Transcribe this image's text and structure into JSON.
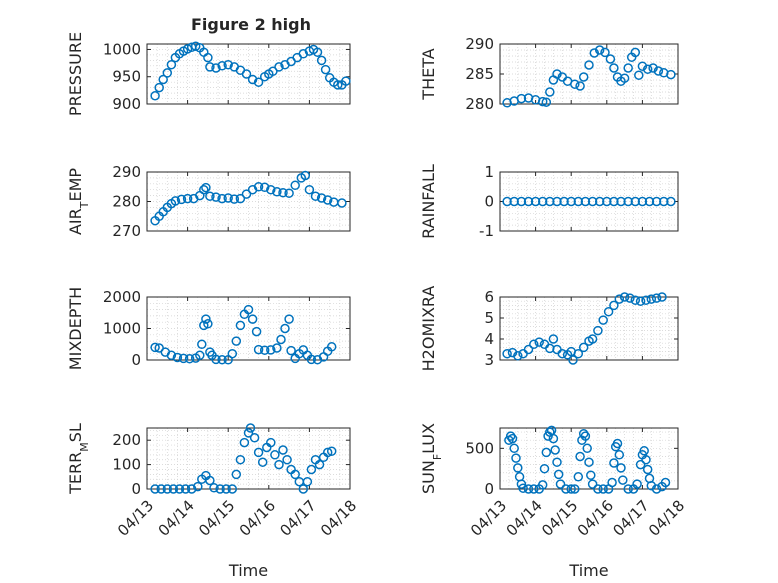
{
  "figure": {
    "title": "Figure 2 high",
    "marker_color": "#0072BD",
    "axis_color": "#262626",
    "grid_color": "#d0d0d0"
  },
  "chart_data": [
    {
      "type": "scatter",
      "title": "Figure 2 high",
      "ylabel": "PRESSURE",
      "xlabel": "",
      "xlim": [
        "04/13",
        "04/18"
      ],
      "ylim": [
        900,
        1010
      ],
      "yticks": [
        900,
        950,
        1000
      ],
      "grid": true,
      "points": [
        [
          4.2,
          915
        ],
        [
          4.3,
          930
        ],
        [
          4.4,
          945
        ],
        [
          4.5,
          957
        ],
        [
          4.6,
          972
        ],
        [
          4.7,
          985
        ],
        [
          4.8,
          992
        ],
        [
          4.9,
          997
        ],
        [
          5.0,
          1001
        ],
        [
          5.1,
          1004
        ],
        [
          5.2,
          1006
        ],
        [
          5.3,
          1003
        ],
        [
          5.4,
          995
        ],
        [
          5.5,
          985
        ],
        [
          5.55,
          968
        ],
        [
          5.7,
          966
        ],
        [
          5.85,
          970
        ],
        [
          6.0,
          972
        ],
        [
          6.15,
          968
        ],
        [
          6.3,
          962
        ],
        [
          6.45,
          955
        ],
        [
          6.6,
          945
        ],
        [
          6.75,
          940
        ],
        [
          6.9,
          950
        ],
        [
          7.0,
          955
        ],
        [
          7.1,
          960
        ],
        [
          7.25,
          968
        ],
        [
          7.4,
          972
        ],
        [
          7.55,
          978
        ],
        [
          7.7,
          985
        ],
        [
          7.85,
          992
        ],
        [
          8.0,
          997
        ],
        [
          8.1,
          1000
        ],
        [
          8.2,
          995
        ],
        [
          8.3,
          980
        ],
        [
          8.4,
          963
        ],
        [
          8.5,
          948
        ],
        [
          8.6,
          940
        ],
        [
          8.7,
          935
        ],
        [
          8.8,
          935
        ],
        [
          8.9,
          942
        ]
      ]
    },
    {
      "type": "scatter",
      "ylabel": "THETA",
      "xlabel": "",
      "xlim": [
        "04/13",
        "04/18"
      ],
      "ylim": [
        280,
        290
      ],
      "yticks": [
        280,
        285,
        290
      ],
      "grid": true,
      "points": [
        [
          4.2,
          280.2
        ],
        [
          4.4,
          280.5
        ],
        [
          4.6,
          280.9
        ],
        [
          4.8,
          281.0
        ],
        [
          5.0,
          280.7
        ],
        [
          5.2,
          280.4
        ],
        [
          5.3,
          280.3
        ],
        [
          5.4,
          282.0
        ],
        [
          5.5,
          284.0
        ],
        [
          5.6,
          285.0
        ],
        [
          5.75,
          284.5
        ],
        [
          5.9,
          283.8
        ],
        [
          6.1,
          283.3
        ],
        [
          6.25,
          283.0
        ],
        [
          6.35,
          284.5
        ],
        [
          6.5,
          286.5
        ],
        [
          6.65,
          288.5
        ],
        [
          6.8,
          289.0
        ],
        [
          6.95,
          288.6
        ],
        [
          7.1,
          287.5
        ],
        [
          7.2,
          286.0
        ],
        [
          7.3,
          284.5
        ],
        [
          7.4,
          283.8
        ],
        [
          7.5,
          284.3
        ],
        [
          7.6,
          286.0
        ],
        [
          7.7,
          287.8
        ],
        [
          7.8,
          288.6
        ],
        [
          7.9,
          284.8
        ],
        [
          8.0,
          286.3
        ],
        [
          8.15,
          285.8
        ],
        [
          8.3,
          286.0
        ],
        [
          8.45,
          285.5
        ],
        [
          8.6,
          285.2
        ],
        [
          8.8,
          284.9
        ]
      ]
    },
    {
      "type": "scatter",
      "ylabel": "AIR_TEMP",
      "xlabel": "",
      "xlim": [
        "04/13",
        "04/18"
      ],
      "ylim": [
        270,
        290
      ],
      "yticks": [
        270,
        280,
        290
      ],
      "grid": true,
      "points": [
        [
          4.2,
          273.5
        ],
        [
          4.3,
          275.0
        ],
        [
          4.4,
          276.5
        ],
        [
          4.5,
          278.0
        ],
        [
          4.6,
          279.3
        ],
        [
          4.7,
          280.2
        ],
        [
          4.85,
          280.7
        ],
        [
          5.0,
          281.0
        ],
        [
          5.15,
          281.0
        ],
        [
          5.3,
          282.0
        ],
        [
          5.4,
          284.0
        ],
        [
          5.45,
          284.7
        ],
        [
          5.55,
          281.8
        ],
        [
          5.7,
          281.5
        ],
        [
          5.85,
          281.0
        ],
        [
          6.0,
          281.2
        ],
        [
          6.15,
          280.8
        ],
        [
          6.3,
          281.0
        ],
        [
          6.45,
          282.5
        ],
        [
          6.6,
          284.0
        ],
        [
          6.75,
          285.0
        ],
        [
          6.9,
          284.8
        ],
        [
          7.05,
          284.0
        ],
        [
          7.2,
          283.3
        ],
        [
          7.35,
          283.0
        ],
        [
          7.5,
          282.8
        ],
        [
          7.65,
          285.5
        ],
        [
          7.8,
          288.0
        ],
        [
          7.9,
          288.8
        ],
        [
          8.0,
          284.0
        ],
        [
          8.15,
          281.8
        ],
        [
          8.3,
          281.2
        ],
        [
          8.45,
          280.5
        ],
        [
          8.6,
          279.8
        ],
        [
          8.8,
          279.5
        ]
      ]
    },
    {
      "type": "scatter",
      "ylabel": "RAINFALL",
      "xlabel": "",
      "xlim": [
        "04/13",
        "04/18"
      ],
      "ylim": [
        -1,
        1
      ],
      "yticks": [
        -1,
        0,
        1
      ],
      "grid": true,
      "points": [
        [
          4.2,
          0
        ],
        [
          4.4,
          0
        ],
        [
          4.6,
          0
        ],
        [
          4.8,
          0
        ],
        [
          5.0,
          0
        ],
        [
          5.2,
          0
        ],
        [
          5.4,
          0
        ],
        [
          5.6,
          0
        ],
        [
          5.8,
          0
        ],
        [
          6.0,
          0
        ],
        [
          6.2,
          0
        ],
        [
          6.4,
          0
        ],
        [
          6.6,
          0
        ],
        [
          6.8,
          0
        ],
        [
          7.0,
          0
        ],
        [
          7.2,
          0
        ],
        [
          7.4,
          0
        ],
        [
          7.6,
          0
        ],
        [
          7.8,
          0
        ],
        [
          8.0,
          0
        ],
        [
          8.2,
          0
        ],
        [
          8.4,
          0
        ],
        [
          8.6,
          0
        ],
        [
          8.8,
          0
        ]
      ]
    },
    {
      "type": "scatter",
      "ylabel": "MIXDEPTH",
      "xlabel": "",
      "xlim": [
        "04/13",
        "04/18"
      ],
      "ylim": [
        0,
        2000
      ],
      "yticks": [
        0,
        1000,
        2000
      ],
      "grid": true,
      "points": [
        [
          4.2,
          400
        ],
        [
          4.3,
          380
        ],
        [
          4.45,
          250
        ],
        [
          4.6,
          150
        ],
        [
          4.75,
          80
        ],
        [
          4.9,
          50
        ],
        [
          5.05,
          40
        ],
        [
          5.2,
          60
        ],
        [
          5.3,
          150
        ],
        [
          5.35,
          500
        ],
        [
          5.4,
          1100
        ],
        [
          5.45,
          1300
        ],
        [
          5.5,
          1150
        ],
        [
          5.55,
          250
        ],
        [
          5.6,
          150
        ],
        [
          5.7,
          20
        ],
        [
          5.85,
          10
        ],
        [
          6.0,
          5
        ],
        [
          6.1,
          200
        ],
        [
          6.2,
          600
        ],
        [
          6.3,
          1100
        ],
        [
          6.4,
          1450
        ],
        [
          6.5,
          1600
        ],
        [
          6.6,
          1300
        ],
        [
          6.7,
          900
        ],
        [
          6.75,
          330
        ],
        [
          6.9,
          310
        ],
        [
          7.05,
          320
        ],
        [
          7.2,
          380
        ],
        [
          7.3,
          650
        ],
        [
          7.4,
          1000
        ],
        [
          7.5,
          1300
        ],
        [
          7.55,
          300
        ],
        [
          7.65,
          50
        ],
        [
          7.75,
          200
        ],
        [
          7.85,
          320
        ],
        [
          7.95,
          150
        ],
        [
          8.05,
          20
        ],
        [
          8.2,
          10
        ],
        [
          8.35,
          100
        ],
        [
          8.45,
          280
        ],
        [
          8.55,
          420
        ]
      ]
    },
    {
      "type": "scatter",
      "ylabel": "H2OMIXRA",
      "xlabel": "",
      "xlim": [
        "04/13",
        "04/18"
      ],
      "ylim": [
        3,
        6
      ],
      "yticks": [
        3,
        4,
        5,
        6
      ],
      "grid": true,
      "points": [
        [
          4.2,
          3.3
        ],
        [
          4.35,
          3.35
        ],
        [
          4.5,
          3.2
        ],
        [
          4.65,
          3.3
        ],
        [
          4.8,
          3.5
        ],
        [
          4.95,
          3.75
        ],
        [
          5.1,
          3.85
        ],
        [
          5.25,
          3.75
        ],
        [
          5.4,
          3.55
        ],
        [
          5.5,
          4.0
        ],
        [
          5.6,
          3.5
        ],
        [
          5.75,
          3.3
        ],
        [
          5.9,
          3.25
        ],
        [
          6.0,
          3.4
        ],
        [
          6.05,
          3.0
        ],
        [
          6.2,
          3.3
        ],
        [
          6.35,
          3.6
        ],
        [
          6.5,
          3.9
        ],
        [
          6.6,
          4.0
        ],
        [
          6.75,
          4.4
        ],
        [
          6.9,
          4.9
        ],
        [
          7.05,
          5.3
        ],
        [
          7.2,
          5.6
        ],
        [
          7.35,
          5.9
        ],
        [
          7.5,
          6.0
        ],
        [
          7.65,
          5.95
        ],
        [
          7.8,
          5.85
        ],
        [
          7.95,
          5.8
        ],
        [
          8.1,
          5.85
        ],
        [
          8.25,
          5.9
        ],
        [
          8.4,
          5.95
        ],
        [
          8.55,
          6.0
        ]
      ]
    },
    {
      "type": "scatter",
      "ylabel": "TERR_MSL",
      "xlabel": "Time",
      "xlim": [
        "04/13",
        "04/18"
      ],
      "ylim": [
        0,
        250
      ],
      "yticks": [
        0,
        100,
        200
      ],
      "xticks": [
        "04/13",
        "04/14",
        "04/15",
        "04/16",
        "04/17",
        "04/18"
      ],
      "grid": true,
      "points": [
        [
          4.2,
          0
        ],
        [
          4.35,
          0
        ],
        [
          4.5,
          0
        ],
        [
          4.65,
          0
        ],
        [
          4.8,
          0
        ],
        [
          4.95,
          0
        ],
        [
          5.1,
          0
        ],
        [
          5.25,
          10
        ],
        [
          5.35,
          40
        ],
        [
          5.45,
          55
        ],
        [
          5.55,
          35
        ],
        [
          5.65,
          5
        ],
        [
          5.8,
          0
        ],
        [
          5.95,
          0
        ],
        [
          6.1,
          0
        ],
        [
          6.2,
          60
        ],
        [
          6.3,
          120
        ],
        [
          6.4,
          190
        ],
        [
          6.5,
          230
        ],
        [
          6.55,
          250
        ],
        [
          6.65,
          210
        ],
        [
          6.75,
          150
        ],
        [
          6.85,
          110
        ],
        [
          6.95,
          170
        ],
        [
          7.05,
          190
        ],
        [
          7.15,
          140
        ],
        [
          7.25,
          100
        ],
        [
          7.35,
          160
        ],
        [
          7.45,
          120
        ],
        [
          7.55,
          80
        ],
        [
          7.65,
          60
        ],
        [
          7.75,
          30
        ],
        [
          7.85,
          0
        ],
        [
          7.95,
          30
        ],
        [
          8.05,
          80
        ],
        [
          8.15,
          120
        ],
        [
          8.25,
          100
        ],
        [
          8.35,
          130
        ],
        [
          8.45,
          150
        ],
        [
          8.55,
          155
        ]
      ]
    },
    {
      "type": "scatter",
      "ylabel": "SUN_FLUX",
      "xlabel": "Time",
      "xlim": [
        "04/13",
        "04/18"
      ],
      "ylim": [
        0,
        750
      ],
      "yticks": [
        0,
        500
      ],
      "xticks": [
        "04/13",
        "04/14",
        "04/15",
        "04/16",
        "04/17",
        "04/18"
      ],
      "grid": true,
      "points": [
        [
          4.25,
          600
        ],
        [
          4.3,
          650
        ],
        [
          4.35,
          620
        ],
        [
          4.4,
          500
        ],
        [
          4.45,
          380
        ],
        [
          4.5,
          260
        ],
        [
          4.55,
          150
        ],
        [
          4.6,
          60
        ],
        [
          4.65,
          10
        ],
        [
          4.8,
          0
        ],
        [
          4.95,
          0
        ],
        [
          5.1,
          0
        ],
        [
          5.2,
          50
        ],
        [
          5.25,
          250
        ],
        [
          5.3,
          450
        ],
        [
          5.35,
          650
        ],
        [
          5.4,
          700
        ],
        [
          5.45,
          720
        ],
        [
          5.5,
          620
        ],
        [
          5.55,
          480
        ],
        [
          5.6,
          330
        ],
        [
          5.65,
          180
        ],
        [
          5.7,
          60
        ],
        [
          5.85,
          0
        ],
        [
          6.0,
          0
        ],
        [
          6.1,
          0
        ],
        [
          6.2,
          150
        ],
        [
          6.25,
          400
        ],
        [
          6.3,
          600
        ],
        [
          6.35,
          680
        ],
        [
          6.4,
          650
        ],
        [
          6.45,
          500
        ],
        [
          6.5,
          330
        ],
        [
          6.55,
          170
        ],
        [
          6.6,
          60
        ],
        [
          6.75,
          0
        ],
        [
          6.9,
          0
        ],
        [
          7.05,
          0
        ],
        [
          7.15,
          80
        ],
        [
          7.2,
          320
        ],
        [
          7.25,
          520
        ],
        [
          7.3,
          560
        ],
        [
          7.35,
          420
        ],
        [
          7.4,
          260
        ],
        [
          7.45,
          110
        ],
        [
          7.6,
          0
        ],
        [
          7.75,
          0
        ],
        [
          7.85,
          60
        ],
        [
          7.95,
          300
        ],
        [
          8.0,
          420
        ],
        [
          8.05,
          470
        ],
        [
          8.1,
          360
        ],
        [
          8.15,
          240
        ],
        [
          8.2,
          130
        ],
        [
          8.25,
          40
        ],
        [
          8.4,
          0
        ],
        [
          8.55,
          30
        ],
        [
          8.65,
          80
        ]
      ]
    }
  ]
}
